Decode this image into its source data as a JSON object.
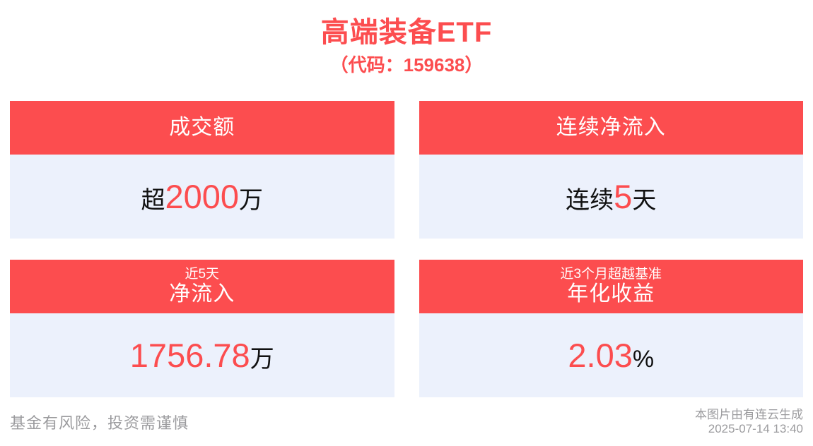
{
  "header": {
    "title": "高端装备ETF",
    "subtitle": "（代码：159638）"
  },
  "cards": [
    {
      "tag": "",
      "title": "成交额",
      "prefix": "超",
      "number": "2000",
      "suffix": "万"
    },
    {
      "tag": "",
      "title": "连续净流入",
      "prefix": "连续",
      "number": "5",
      "suffix": "天"
    },
    {
      "tag": "近5天",
      "title": "净流入",
      "prefix": "",
      "number": "1756.78",
      "suffix": "万"
    },
    {
      "tag": "近3个月超越基准",
      "title": "年化收益",
      "prefix": "",
      "number": "2.03",
      "suffix": "%"
    }
  ],
  "footer": {
    "disclaimer": "基金有风险，投资需谨慎",
    "credit": "本图片由有连云生成",
    "generated_at": "2025-07-14 13:40"
  },
  "colors": {
    "accent_red": "#FC4D4F",
    "card_body_bg": "#ECF1FC",
    "header_text": "#FFFFFF",
    "value_text": "#111111",
    "footer_text": "#9B9B9E"
  }
}
